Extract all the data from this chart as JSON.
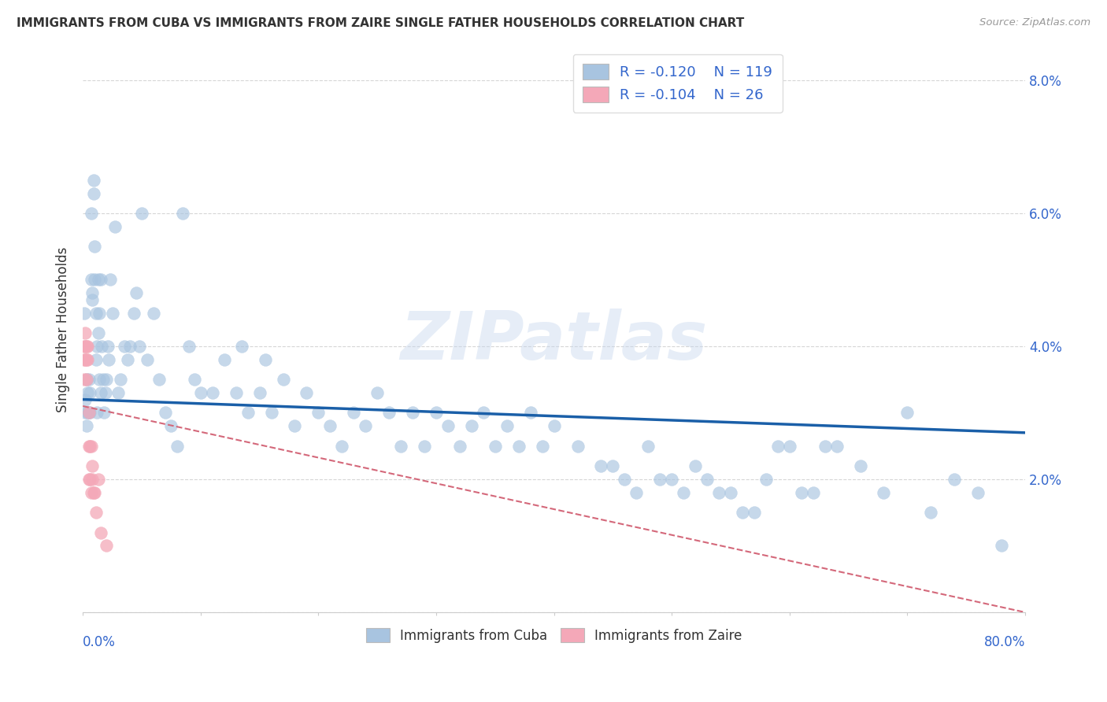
{
  "title": "IMMIGRANTS FROM CUBA VS IMMIGRANTS FROM ZAIRE SINGLE FATHER HOUSEHOLDS CORRELATION CHART",
  "source": "Source: ZipAtlas.com",
  "ylabel": "Single Father Households",
  "xlim": [
    0.0,
    0.8
  ],
  "ylim": [
    0.0,
    0.085
  ],
  "cuba_R": -0.12,
  "cuba_N": 119,
  "zaire_R": -0.104,
  "zaire_N": 26,
  "cuba_color": "#a8c4e0",
  "zaire_color": "#f4a8b8",
  "cuba_line_color": "#1a5fa8",
  "zaire_line_color": "#d4687a",
  "background_color": "#ffffff",
  "grid_color": "#cccccc",
  "watermark": "ZIPatlas",
  "cuba_x": [
    0.001,
    0.002,
    0.002,
    0.003,
    0.003,
    0.004,
    0.004,
    0.005,
    0.005,
    0.006,
    0.006,
    0.007,
    0.007,
    0.008,
    0.008,
    0.009,
    0.009,
    0.01,
    0.01,
    0.011,
    0.011,
    0.012,
    0.012,
    0.013,
    0.013,
    0.014,
    0.014,
    0.015,
    0.015,
    0.016,
    0.017,
    0.018,
    0.019,
    0.02,
    0.021,
    0.022,
    0.023,
    0.025,
    0.027,
    0.03,
    0.032,
    0.035,
    0.038,
    0.04,
    0.043,
    0.045,
    0.048,
    0.05,
    0.055,
    0.06,
    0.065,
    0.07,
    0.075,
    0.08,
    0.085,
    0.09,
    0.095,
    0.1,
    0.11,
    0.12,
    0.13,
    0.135,
    0.14,
    0.15,
    0.155,
    0.16,
    0.17,
    0.18,
    0.19,
    0.2,
    0.21,
    0.22,
    0.23,
    0.24,
    0.25,
    0.26,
    0.27,
    0.28,
    0.29,
    0.3,
    0.31,
    0.32,
    0.33,
    0.34,
    0.35,
    0.36,
    0.37,
    0.38,
    0.39,
    0.4,
    0.42,
    0.44,
    0.46,
    0.48,
    0.5,
    0.52,
    0.54,
    0.56,
    0.58,
    0.6,
    0.62,
    0.64,
    0.66,
    0.68,
    0.7,
    0.72,
    0.74,
    0.76,
    0.78,
    0.45,
    0.47,
    0.49,
    0.51,
    0.53,
    0.55,
    0.57,
    0.59,
    0.61,
    0.63
  ],
  "cuba_y": [
    0.045,
    0.03,
    0.032,
    0.035,
    0.028,
    0.033,
    0.03,
    0.035,
    0.03,
    0.033,
    0.03,
    0.05,
    0.06,
    0.047,
    0.048,
    0.063,
    0.065,
    0.055,
    0.05,
    0.045,
    0.038,
    0.04,
    0.03,
    0.042,
    0.05,
    0.045,
    0.035,
    0.05,
    0.033,
    0.04,
    0.035,
    0.03,
    0.033,
    0.035,
    0.04,
    0.038,
    0.05,
    0.045,
    0.058,
    0.033,
    0.035,
    0.04,
    0.038,
    0.04,
    0.045,
    0.048,
    0.04,
    0.06,
    0.038,
    0.045,
    0.035,
    0.03,
    0.028,
    0.025,
    0.06,
    0.04,
    0.035,
    0.033,
    0.033,
    0.038,
    0.033,
    0.04,
    0.03,
    0.033,
    0.038,
    0.03,
    0.035,
    0.028,
    0.033,
    0.03,
    0.028,
    0.025,
    0.03,
    0.028,
    0.033,
    0.03,
    0.025,
    0.03,
    0.025,
    0.03,
    0.028,
    0.025,
    0.028,
    0.03,
    0.025,
    0.028,
    0.025,
    0.03,
    0.025,
    0.028,
    0.025,
    0.022,
    0.02,
    0.025,
    0.02,
    0.022,
    0.018,
    0.015,
    0.02,
    0.025,
    0.018,
    0.025,
    0.022,
    0.018,
    0.03,
    0.015,
    0.02,
    0.018,
    0.01,
    0.022,
    0.018,
    0.02,
    0.018,
    0.02,
    0.018,
    0.015,
    0.025,
    0.018,
    0.025
  ],
  "zaire_x": [
    0.001,
    0.001,
    0.001,
    0.002,
    0.002,
    0.002,
    0.003,
    0.003,
    0.003,
    0.004,
    0.004,
    0.005,
    0.005,
    0.005,
    0.006,
    0.006,
    0.007,
    0.007,
    0.008,
    0.008,
    0.009,
    0.01,
    0.011,
    0.013,
    0.015,
    0.02
  ],
  "zaire_y": [
    0.04,
    0.038,
    0.035,
    0.042,
    0.04,
    0.038,
    0.04,
    0.038,
    0.035,
    0.038,
    0.04,
    0.025,
    0.03,
    0.02,
    0.025,
    0.02,
    0.025,
    0.018,
    0.02,
    0.022,
    0.018,
    0.018,
    0.015,
    0.02,
    0.012,
    0.01
  ],
  "cuba_trend": [
    0.032,
    0.027
  ],
  "zaire_trend": [
    0.031,
    0.0
  ],
  "ytick_positions": [
    0.0,
    0.02,
    0.04,
    0.06,
    0.08
  ],
  "ytick_labels": [
    "",
    "2.0%",
    "4.0%",
    "6.0%",
    "8.0%"
  ]
}
